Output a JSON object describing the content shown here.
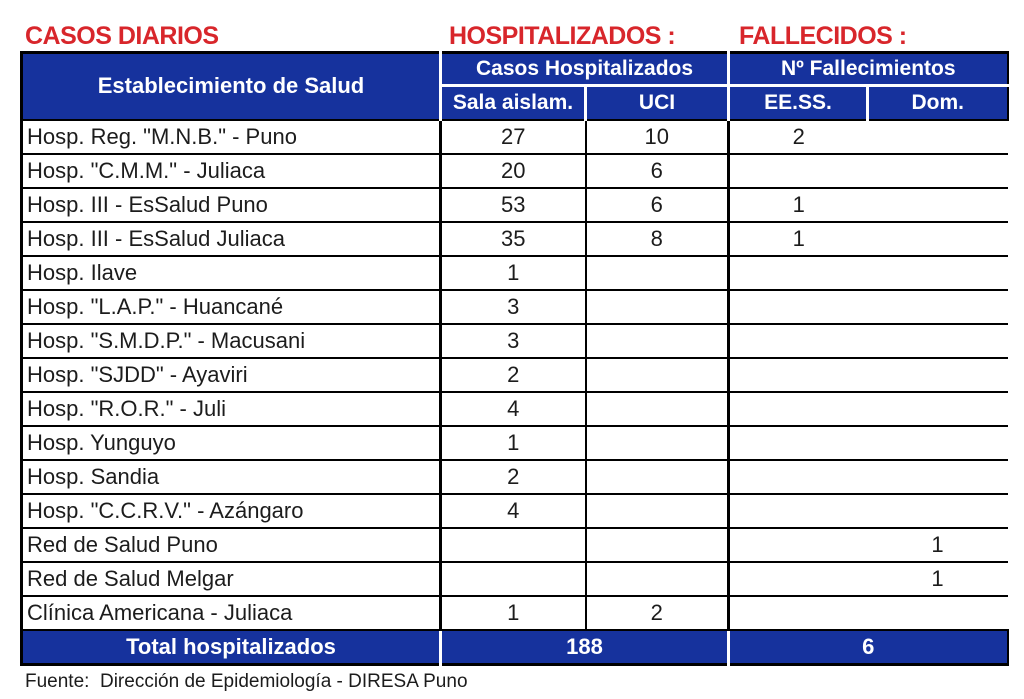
{
  "titles": {
    "casos_diarios": "CASOS DIARIOS",
    "hospitalizados": "HOSPITALIZADOS :",
    "fallecidos": "FALLECIDOS :"
  },
  "table": {
    "header": {
      "establecimiento": "Establecimiento de Salud",
      "casos_hospitalizados": "Casos Hospitalizados",
      "fallecimientos": "Nº Fallecimientos",
      "sala_aislam": "Sala aislam.",
      "uci": "UCI",
      "eess": "EE.SS.",
      "dom": "Dom."
    },
    "rows": [
      {
        "name": "Hosp. Reg. \"M.N.B.\" - Puno",
        "sala": "27",
        "uci": "10",
        "eess": "2",
        "dom": ""
      },
      {
        "name": "Hosp. \"C.M.M.\" - Juliaca",
        "sala": "20",
        "uci": "6",
        "eess": "",
        "dom": ""
      },
      {
        "name": "Hosp. III - EsSalud Puno",
        "sala": "53",
        "uci": "6",
        "eess": "1",
        "dom": ""
      },
      {
        "name": "Hosp. III - EsSalud Juliaca",
        "sala": "35",
        "uci": "8",
        "eess": "1",
        "dom": ""
      },
      {
        "name": "Hosp. Ilave",
        "sala": "1",
        "uci": "",
        "eess": "",
        "dom": ""
      },
      {
        "name": "Hosp. \"L.A.P.\" - Huancané",
        "sala": "3",
        "uci": "",
        "eess": "",
        "dom": ""
      },
      {
        "name": "Hosp. \"S.M.D.P.\" - Macusani",
        "sala": "3",
        "uci": "",
        "eess": "",
        "dom": ""
      },
      {
        "name": "Hosp. \"SJDD\" - Ayaviri",
        "sala": "2",
        "uci": "",
        "eess": "",
        "dom": ""
      },
      {
        "name": "Hosp. \"R.O.R.\" - Juli",
        "sala": "4",
        "uci": "",
        "eess": "",
        "dom": ""
      },
      {
        "name": "Hosp. Yunguyo",
        "sala": "1",
        "uci": "",
        "eess": "",
        "dom": ""
      },
      {
        "name": "Hosp. Sandia",
        "sala": "2",
        "uci": "",
        "eess": "",
        "dom": ""
      },
      {
        "name": "Hosp. \"C.C.R.V.\" - Azángaro",
        "sala": "4",
        "uci": "",
        "eess": "",
        "dom": ""
      },
      {
        "name": "Red de Salud Puno",
        "sala": "",
        "uci": "",
        "eess": "",
        "dom": "1"
      },
      {
        "name": "Red de Salud Melgar",
        "sala": "",
        "uci": "",
        "eess": "",
        "dom": "1"
      },
      {
        "name": "Clínica Americana - Juliaca",
        "sala": "1",
        "uci": "2",
        "eess": "",
        "dom": ""
      }
    ],
    "total": {
      "label": "Total hospitalizados",
      "hospitalizados": "188",
      "fallecidos": "6"
    }
  },
  "footer": {
    "fuente": "Fuente:  Dirección de Epidemiología - DIRESA Puno"
  },
  "colors": {
    "header_blue": "#16329D",
    "title_red": "#D8262B",
    "border_black": "#000000"
  }
}
